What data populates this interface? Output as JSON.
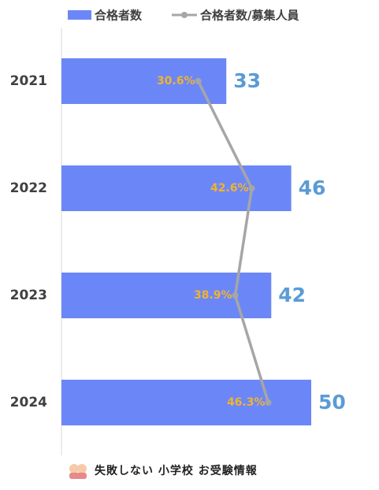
{
  "chart_data": {
    "type": "bar",
    "orientation": "horizontal",
    "categories": [
      "2021",
      "2022",
      "2023",
      "2024"
    ],
    "series": [
      {
        "name": "合格者数",
        "type": "bar",
        "color": "#6b87f7",
        "values": [
          33,
          46,
          42,
          50
        ]
      },
      {
        "name": "合格者数/募集人員",
        "type": "line",
        "color": "#a6a6a6",
        "values": [
          30.6,
          42.6,
          38.9,
          46.3
        ],
        "value_labels": [
          "30.6%",
          "42.6%",
          "38.9%",
          "46.3%"
        ]
      }
    ]
  },
  "footer": "失敗しない 小学校 お受験情報"
}
